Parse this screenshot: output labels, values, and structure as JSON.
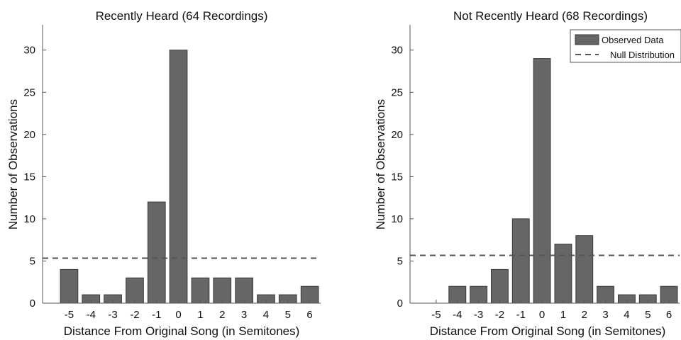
{
  "chart_data": [
    {
      "type": "bar",
      "title": "Recently Heard (64 Recordings)",
      "xlabel": "Distance From Original Song (in Semitones)",
      "ylabel": "Number of Observations",
      "categories": [
        "-5",
        "-4",
        "-3",
        "-2",
        "-1",
        "0",
        "1",
        "2",
        "3",
        "4",
        "5",
        "6"
      ],
      "series": [
        {
          "name": "Observed Data",
          "values": [
            4,
            1,
            1,
            3,
            12,
            30,
            3,
            3,
            3,
            1,
            1,
            2
          ]
        }
      ],
      "null_distribution": 5.33,
      "ylim": [
        0,
        33
      ],
      "yticks": [
        0,
        5,
        10,
        15,
        20,
        25,
        30
      ],
      "grid": false,
      "legend": null
    },
    {
      "type": "bar",
      "title": "Not Recently Heard (68 Recordings)",
      "xlabel": "Distance From Original Song (in Semitones)",
      "ylabel": "Number of Observations",
      "categories": [
        "-5",
        "-4",
        "-3",
        "-2",
        "-1",
        "0",
        "1",
        "2",
        "3",
        "4",
        "5",
        "6"
      ],
      "series": [
        {
          "name": "Observed Data",
          "values": [
            0,
            2,
            2,
            4,
            10,
            29,
            7,
            8,
            2,
            1,
            1,
            2
          ]
        }
      ],
      "null_distribution": 5.67,
      "ylim": [
        0,
        33
      ],
      "yticks": [
        0,
        5,
        10,
        15,
        20,
        25,
        30
      ],
      "grid": false,
      "legend": {
        "placement": "top-right",
        "entries": [
          "Observed Data",
          "Null Distribution"
        ]
      }
    }
  ],
  "colors": {
    "bar_fill": "#666666",
    "bar_edge": "#3a3a3a",
    "null_line": "#555555",
    "axis": "#555555",
    "text": "#111111"
  }
}
